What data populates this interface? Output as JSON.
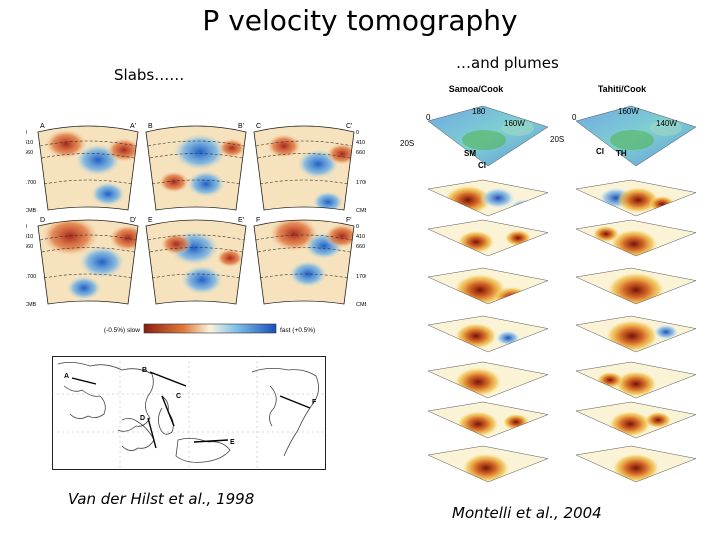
{
  "slide": {
    "title": "P velocity tomography",
    "left_caption": "Slabs……",
    "right_caption": "…and plumes",
    "left_citation": "Van der Hilst et al., 1998",
    "right_citation": "Montelli et al., 2004"
  },
  "slabs_figure": {
    "section_labels": [
      [
        "A",
        "A'"
      ],
      [
        "B",
        "B'"
      ],
      [
        "C",
        "C'"
      ],
      [
        "D",
        "D'"
      ],
      [
        "E",
        "E'"
      ],
      [
        "F",
        "F'"
      ]
    ],
    "depth_labels": [
      "0",
      "410",
      "660",
      "1700",
      "CMB"
    ],
    "colorbar_left": "(-0.5%) slow",
    "colorbar_right": "fast (+0.5%)",
    "map_profile_labels": [
      "A",
      "B",
      "C",
      "D",
      "E",
      "F"
    ],
    "colors": {
      "slow": "#b8321b",
      "fast": "#1f5fc8",
      "neutral": "#f6e9c8"
    }
  },
  "plumes_figure": {
    "left_column_title": "Samoa/Cook",
    "right_column_title": "Tahiti/Cook",
    "left_map_labels": [
      "0",
      "180",
      "160W",
      "20S",
      "SM",
      "CI"
    ],
    "right_map_labels": [
      "0",
      "160W",
      "140W",
      "20S",
      "CI",
      "TH"
    ]
  }
}
